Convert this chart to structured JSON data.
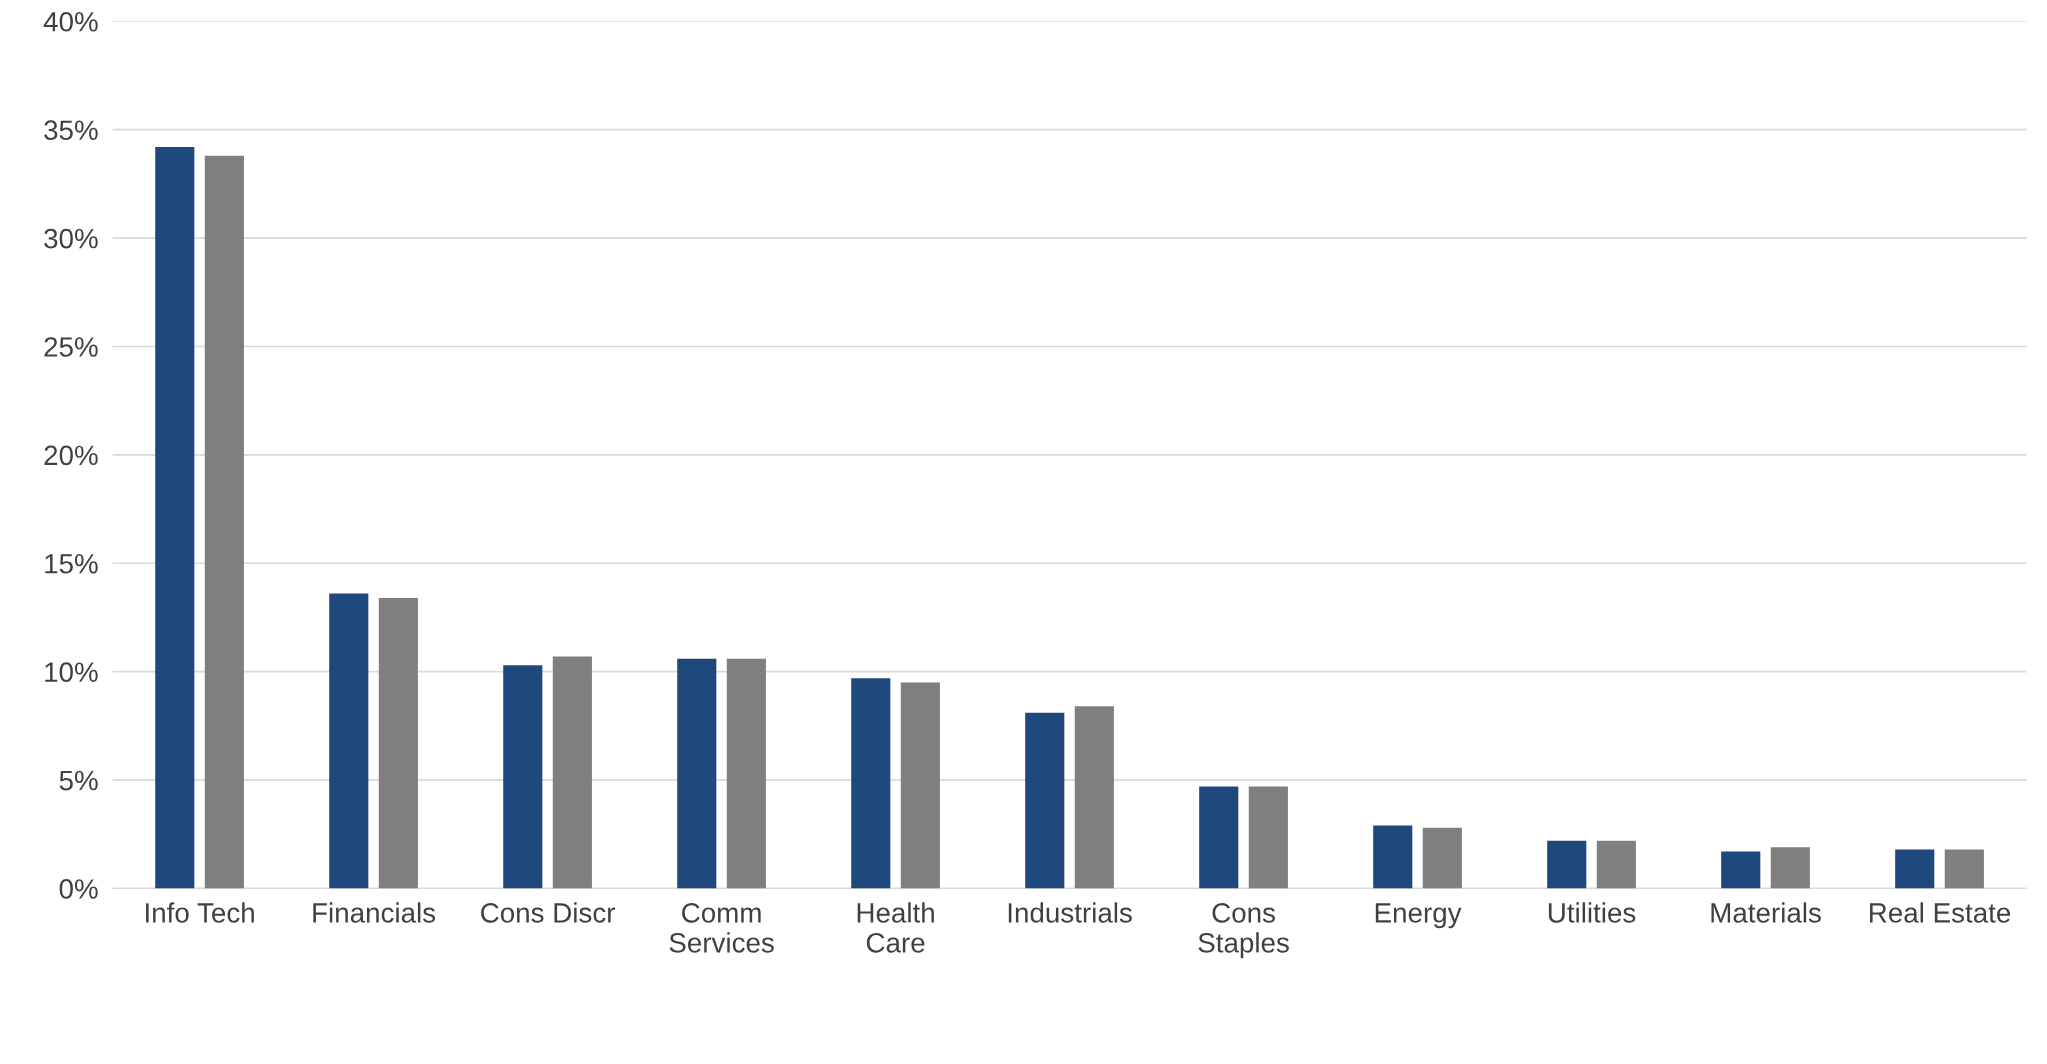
{
  "chart_data": {
    "type": "bar",
    "categories": [
      "Info Tech",
      "Financials",
      "Cons Discr",
      "Comm\nServices",
      "Health\nCare",
      "Industrials",
      "Cons\nStaples",
      "Energy",
      "Utilities",
      "Materials",
      "Real Estate"
    ],
    "series": [
      {
        "color": "#1f497d",
        "values": [
          34.2,
          13.6,
          10.3,
          10.6,
          9.7,
          8.1,
          4.7,
          2.9,
          2.2,
          1.7,
          1.8
        ]
      },
      {
        "color": "#7f7f7f",
        "values": [
          33.8,
          13.4,
          10.7,
          10.6,
          9.5,
          8.4,
          4.7,
          2.8,
          2.2,
          1.9,
          1.8
        ]
      }
    ],
    "ylim": [
      0,
      40
    ],
    "yticks": [
      {
        "value": 0,
        "label": "0%"
      },
      {
        "value": 5,
        "label": "5%"
      },
      {
        "value": 10,
        "label": "10%"
      },
      {
        "value": 15,
        "label": "15%"
      },
      {
        "value": 20,
        "label": "20%"
      },
      {
        "value": 25,
        "label": "25%"
      },
      {
        "value": 30,
        "label": "30%"
      },
      {
        "value": 35,
        "label": "35%"
      },
      {
        "value": 40,
        "label": "40%"
      }
    ],
    "grid": "y"
  }
}
